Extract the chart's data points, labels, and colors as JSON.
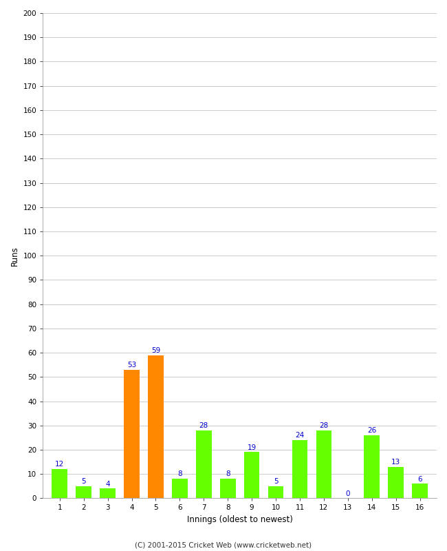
{
  "innings": [
    1,
    2,
    3,
    4,
    5,
    6,
    7,
    8,
    9,
    10,
    11,
    12,
    13,
    14,
    15,
    16
  ],
  "runs": [
    12,
    5,
    4,
    53,
    59,
    8,
    28,
    8,
    19,
    5,
    24,
    28,
    0,
    26,
    13,
    6
  ],
  "bar_colors": [
    "#66ff00",
    "#66ff00",
    "#66ff00",
    "#ff8800",
    "#ff8800",
    "#66ff00",
    "#66ff00",
    "#66ff00",
    "#66ff00",
    "#66ff00",
    "#66ff00",
    "#66ff00",
    "#66ff00",
    "#66ff00",
    "#66ff00",
    "#66ff00"
  ],
  "xlabel": "Innings (oldest to newest)",
  "ylabel": "Runs",
  "ylim": [
    0,
    200
  ],
  "yticks": [
    0,
    10,
    20,
    30,
    40,
    50,
    60,
    70,
    80,
    90,
    100,
    110,
    120,
    130,
    140,
    150,
    160,
    170,
    180,
    190,
    200
  ],
  "label_color": "#0000cc",
  "label_fontsize": 7.5,
  "xlabel_fontsize": 8.5,
  "ylabel_fontsize": 8.5,
  "tick_fontsize": 7.5,
  "background_color": "#ffffff",
  "plot_bg_color": "#ffffff",
  "grid_color": "#cccccc",
  "footer": "(C) 2001-2015 Cricket Web (www.cricketweb.net)",
  "footer_fontsize": 7.5,
  "bar_width": 0.65
}
